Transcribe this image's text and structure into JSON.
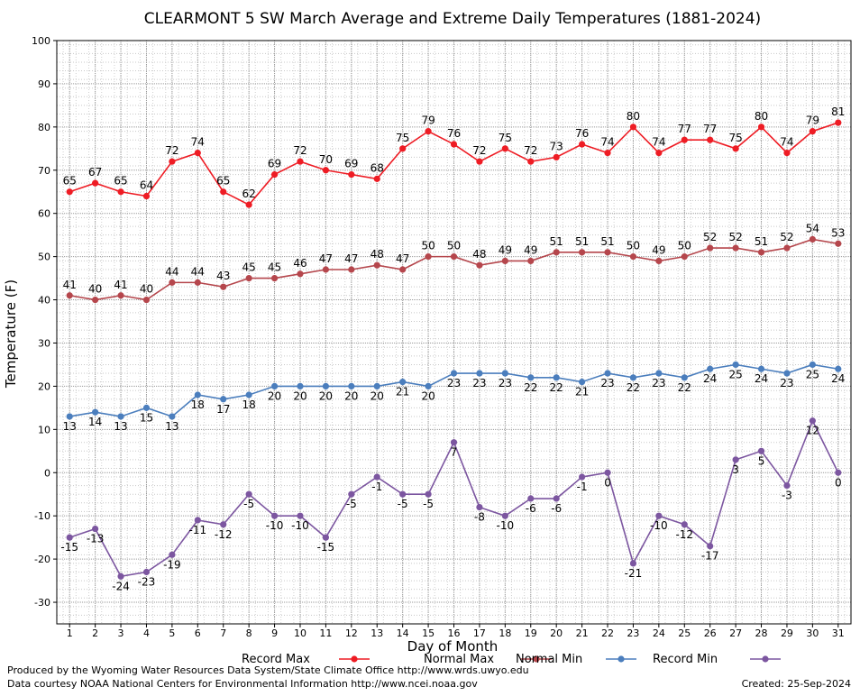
{
  "chart_data": {
    "type": "line",
    "title": "CLEARMONT 5 SW March Average and Extreme Daily Temperatures (1881-2024)",
    "xlabel": "Day of Month",
    "ylabel": "Temperature (F)",
    "ylim": [
      -35,
      100
    ],
    "yticks": [
      -30,
      -20,
      -10,
      0,
      10,
      20,
      30,
      40,
      50,
      60,
      70,
      80,
      90,
      100
    ],
    "x": [
      1,
      2,
      3,
      4,
      5,
      6,
      7,
      8,
      9,
      10,
      11,
      12,
      13,
      14,
      15,
      16,
      17,
      18,
      19,
      20,
      21,
      22,
      23,
      24,
      25,
      26,
      27,
      28,
      29,
      30,
      31
    ],
    "grid": true,
    "legend_position": "bottom",
    "series": [
      {
        "name": "Record Max",
        "color": "#ee1c24",
        "label_pos": "above",
        "values": [
          65,
          67,
          65,
          64,
          72,
          74,
          65,
          62,
          69,
          72,
          70,
          69,
          68,
          75,
          79,
          76,
          72,
          75,
          72,
          73,
          76,
          74,
          80,
          74,
          77,
          77,
          75,
          80,
          74,
          79,
          81
        ]
      },
      {
        "name": "Normal Max",
        "color": "#b5464c",
        "label_pos": "above",
        "values": [
          41,
          40,
          41,
          40,
          44,
          44,
          43,
          45,
          45,
          46,
          47,
          47,
          48,
          47,
          50,
          50,
          48,
          49,
          49,
          51,
          51,
          51,
          50,
          49,
          50,
          52,
          52,
          51,
          52,
          54,
          53
        ]
      },
      {
        "name": "Normal Min",
        "color": "#4b7ebd",
        "label_pos": "below",
        "values": [
          13,
          14,
          13,
          15,
          13,
          18,
          17,
          18,
          20,
          20,
          20,
          20,
          20,
          21,
          20,
          23,
          23,
          23,
          22,
          22,
          21,
          23,
          22,
          23,
          22,
          24,
          25,
          24,
          23,
          25,
          24
        ]
      },
      {
        "name": "Record Min",
        "color": "#7c56a0",
        "label_pos": "below",
        "values": [
          -15,
          -13,
          -24,
          -23,
          -19,
          -11,
          -12,
          -5,
          -10,
          -10,
          -15,
          -5,
          -1,
          -5,
          -5,
          7,
          -8,
          -10,
          -6,
          -6,
          -1,
          0,
          -21,
          -10,
          -12,
          -17,
          3,
          5,
          -3,
          12,
          0
        ]
      }
    ]
  },
  "footer": {
    "produced_by": "Produced by the Wyoming Water Resources Data System/State Climate Office http://www.wrds.uwyo.edu",
    "courtesy": "Data courtesy NOAA National Centers for Environmental Information http://www.ncei.noaa.gov",
    "created": "Created:  25-Sep-2024"
  }
}
